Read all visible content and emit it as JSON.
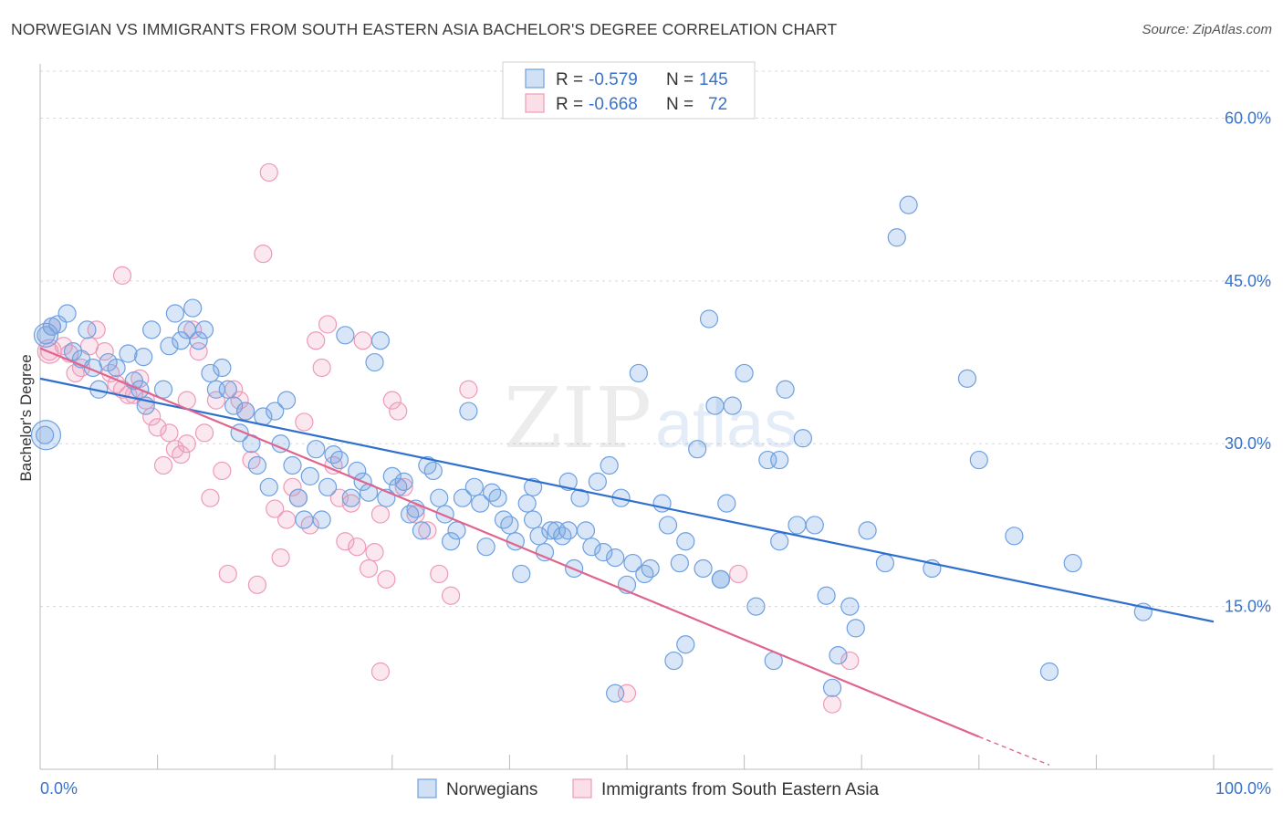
{
  "title": "NORWEGIAN VS IMMIGRANTS FROM SOUTH EASTERN ASIA BACHELOR'S DEGREE CORRELATION CHART",
  "source": "Source: ZipAtlas.com",
  "watermark": {
    "zip": "ZIP",
    "atlas": "atlas"
  },
  "colors": {
    "blue": "#6ea0e0",
    "blue_fill": "rgba(120,165,225,0.28)",
    "blue_line": "#2f6fce",
    "pink": "#ee9ab6",
    "pink_fill": "rgba(240,160,190,0.25)",
    "pink_line": "#e0658e",
    "tick_text": "#3a73c9",
    "grid": "#d8d8d8"
  },
  "legend": {
    "rows": [
      {
        "r_label": "R = ",
        "r_value": "-0.579",
        "n_label": "N = ",
        "n_value": "145"
      },
      {
        "r_label": "R = ",
        "r_value": "-0.668",
        "n_label": "N = ",
        "n_value": "72"
      }
    ]
  },
  "chart_data": {
    "type": "scatter",
    "title": "NORWEGIAN VS IMMIGRANTS FROM SOUTH EASTERN ASIA BACHELOR'S DEGREE CORRELATION CHART",
    "xlabel": "",
    "ylabel": "Bachelor's Degree",
    "xlim": [
      0,
      100
    ],
    "ylim": [
      0,
      65
    ],
    "x_tick_labels": [
      "0.0%",
      "100.0%"
    ],
    "y_ticks": [
      15,
      30,
      45,
      60
    ],
    "y_tick_labels": [
      "15.0%",
      "30.0%",
      "45.0%",
      "60.0%"
    ],
    "grid": true,
    "legend_position": "top-center",
    "series": [
      {
        "name": "Norwegians",
        "color": "blue",
        "r": -0.579,
        "n": 145,
        "trend": {
          "x0": 0,
          "y0": 36.0,
          "x1": 100,
          "y1": 13.6
        },
        "points": [
          [
            0.5,
            40.0
          ],
          [
            0.4,
            30.8
          ],
          [
            1.5,
            41.0
          ],
          [
            2.3,
            42.0
          ],
          [
            1.0,
            40.8
          ],
          [
            2.8,
            38.5
          ],
          [
            3.5,
            37.8
          ],
          [
            4.0,
            40.5
          ],
          [
            4.5,
            37.0
          ],
          [
            5.0,
            35.0
          ],
          [
            5.8,
            37.5
          ],
          [
            6.5,
            37.0
          ],
          [
            7.5,
            38.3
          ],
          [
            8.0,
            35.8
          ],
          [
            8.5,
            35.0
          ],
          [
            9.0,
            33.5
          ],
          [
            8.8,
            38.0
          ],
          [
            9.5,
            40.5
          ],
          [
            10.5,
            35.0
          ],
          [
            11.0,
            39.0
          ],
          [
            11.5,
            42.0
          ],
          [
            12.0,
            39.5
          ],
          [
            12.5,
            40.5
          ],
          [
            13.0,
            42.5
          ],
          [
            13.5,
            39.5
          ],
          [
            14.0,
            40.5
          ],
          [
            14.5,
            36.5
          ],
          [
            15.0,
            35.0
          ],
          [
            15.5,
            37.0
          ],
          [
            16.0,
            35.0
          ],
          [
            16.5,
            33.5
          ],
          [
            17.0,
            31.0
          ],
          [
            17.5,
            33.0
          ],
          [
            18.0,
            30.0
          ],
          [
            18.5,
            28.0
          ],
          [
            19.0,
            32.5
          ],
          [
            19.5,
            26.0
          ],
          [
            20.0,
            33.0
          ],
          [
            20.5,
            30.0
          ],
          [
            21.0,
            34.0
          ],
          [
            21.5,
            28.0
          ],
          [
            22.0,
            25.0
          ],
          [
            22.5,
            23.0
          ],
          [
            23.0,
            27.0
          ],
          [
            23.5,
            29.5
          ],
          [
            24.0,
            23.0
          ],
          [
            24.5,
            26.0
          ],
          [
            25.0,
            29.0
          ],
          [
            25.5,
            28.5
          ],
          [
            26.0,
            40.0
          ],
          [
            26.5,
            25.0
          ],
          [
            27.0,
            27.5
          ],
          [
            27.5,
            26.5
          ],
          [
            28.0,
            25.5
          ],
          [
            28.5,
            37.5
          ],
          [
            29.0,
            39.5
          ],
          [
            29.5,
            25.0
          ],
          [
            30.0,
            27.0
          ],
          [
            30.5,
            26.0
          ],
          [
            31.0,
            26.5
          ],
          [
            31.5,
            23.5
          ],
          [
            32.0,
            24.0
          ],
          [
            32.5,
            22.0
          ],
          [
            33.0,
            28.0
          ],
          [
            33.5,
            27.5
          ],
          [
            34.0,
            25.0
          ],
          [
            34.5,
            23.5
          ],
          [
            35.0,
            21.0
          ],
          [
            35.5,
            22.0
          ],
          [
            36.0,
            25.0
          ],
          [
            36.5,
            33.0
          ],
          [
            37.0,
            26.0
          ],
          [
            37.5,
            24.5
          ],
          [
            38.0,
            20.5
          ],
          [
            38.5,
            25.5
          ],
          [
            39.0,
            25.0
          ],
          [
            39.5,
            23.0
          ],
          [
            40.0,
            22.5
          ],
          [
            40.5,
            21.0
          ],
          [
            41.0,
            18.0
          ],
          [
            41.5,
            24.5
          ],
          [
            42.0,
            26.0
          ],
          [
            42.5,
            21.5
          ],
          [
            43.0,
            20.0
          ],
          [
            43.5,
            22.0
          ],
          [
            44.0,
            22.0
          ],
          [
            44.5,
            21.5
          ],
          [
            45.0,
            22.0
          ],
          [
            45.5,
            18.5
          ],
          [
            46.0,
            25.0
          ],
          [
            46.5,
            22.0
          ],
          [
            47.0,
            20.5
          ],
          [
            47.5,
            26.5
          ],
          [
            48.0,
            20.0
          ],
          [
            48.5,
            28.0
          ],
          [
            49.0,
            19.5
          ],
          [
            49.5,
            25.0
          ],
          [
            50.0,
            17.0
          ],
          [
            50.5,
            19.0
          ],
          [
            51.0,
            36.5
          ],
          [
            51.5,
            18.0
          ],
          [
            52.0,
            18.5
          ],
          [
            53.0,
            24.5
          ],
          [
            53.5,
            22.5
          ],
          [
            54.0,
            10.0
          ],
          [
            54.5,
            19.0
          ],
          [
            55.0,
            11.5
          ],
          [
            56.0,
            29.5
          ],
          [
            56.5,
            18.5
          ],
          [
            57.0,
            41.5
          ],
          [
            57.5,
            33.5
          ],
          [
            58.0,
            17.5
          ],
          [
            58.5,
            24.5
          ],
          [
            59.0,
            33.5
          ],
          [
            60.0,
            36.5
          ],
          [
            61.0,
            15.0
          ],
          [
            62.0,
            28.5
          ],
          [
            62.5,
            10.0
          ],
          [
            63.0,
            21.0
          ],
          [
            63.5,
            35.0
          ],
          [
            64.5,
            22.5
          ],
          [
            65.0,
            30.5
          ],
          [
            66.0,
            22.5
          ],
          [
            67.0,
            16.0
          ],
          [
            68.0,
            10.5
          ],
          [
            69.0,
            15.0
          ],
          [
            69.5,
            13.0
          ],
          [
            70.5,
            22.0
          ],
          [
            72.0,
            19.0
          ],
          [
            73.0,
            49.0
          ],
          [
            74.0,
            52.0
          ],
          [
            76.0,
            18.5
          ],
          [
            79.0,
            36.0
          ],
          [
            80.0,
            28.5
          ],
          [
            83.0,
            21.5
          ],
          [
            86.0,
            9.0
          ],
          [
            88.0,
            19.0
          ],
          [
            94.0,
            14.5
          ],
          [
            49.0,
            7.0
          ],
          [
            67.5,
            7.5
          ],
          [
            63.0,
            28.5
          ],
          [
            58.0,
            17.5
          ],
          [
            55.0,
            21.0
          ],
          [
            45.0,
            26.5
          ],
          [
            42.0,
            23.0
          ]
        ]
      },
      {
        "name": "Immigrants from South Eastern Asia",
        "color": "pink",
        "r": -0.668,
        "n": 72,
        "trend": {
          "x0": 0,
          "y0": 38.8,
          "x1": 80,
          "y1": 3.0,
          "dash_to_x": 86,
          "dash_to_y": 0.4
        },
        "points": [
          [
            0.8,
            38.5
          ],
          [
            1.0,
            40.8
          ],
          [
            2.0,
            39.0
          ],
          [
            2.5,
            38.3
          ],
          [
            3.0,
            36.5
          ],
          [
            3.5,
            37.0
          ],
          [
            4.2,
            39.0
          ],
          [
            4.8,
            40.5
          ],
          [
            5.5,
            38.5
          ],
          [
            6.0,
            36.5
          ],
          [
            6.5,
            35.5
          ],
          [
            7.0,
            35.0
          ],
          [
            7.5,
            34.5
          ],
          [
            8.0,
            34.5
          ],
          [
            8.5,
            36.0
          ],
          [
            9.0,
            34.0
          ],
          [
            9.5,
            32.5
          ],
          [
            10.0,
            31.5
          ],
          [
            10.5,
            28.0
          ],
          [
            11.0,
            31.0
          ],
          [
            11.5,
            29.5
          ],
          [
            12.0,
            29.0
          ],
          [
            12.5,
            34.0
          ],
          [
            13.0,
            40.5
          ],
          [
            13.5,
            38.5
          ],
          [
            14.0,
            31.0
          ],
          [
            14.5,
            25.0
          ],
          [
            15.0,
            34.0
          ],
          [
            15.5,
            27.5
          ],
          [
            16.0,
            18.0
          ],
          [
            16.5,
            35.0
          ],
          [
            17.0,
            34.0
          ],
          [
            17.5,
            33.0
          ],
          [
            18.0,
            28.5
          ],
          [
            18.5,
            17.0
          ],
          [
            19.0,
            47.5
          ],
          [
            19.5,
            55.0
          ],
          [
            20.0,
            24.0
          ],
          [
            20.5,
            19.5
          ],
          [
            21.0,
            23.0
          ],
          [
            21.5,
            26.0
          ],
          [
            22.0,
            25.0
          ],
          [
            22.5,
            32.0
          ],
          [
            23.0,
            22.5
          ],
          [
            23.5,
            39.5
          ],
          [
            24.0,
            37.0
          ],
          [
            24.5,
            41.0
          ],
          [
            25.0,
            28.0
          ],
          [
            25.5,
            25.0
          ],
          [
            26.0,
            21.0
          ],
          [
            26.5,
            24.5
          ],
          [
            27.0,
            20.5
          ],
          [
            27.5,
            39.5
          ],
          [
            28.0,
            18.5
          ],
          [
            28.5,
            20.0
          ],
          [
            29.0,
            23.5
          ],
          [
            29.5,
            17.5
          ],
          [
            30.0,
            34.0
          ],
          [
            30.5,
            33.0
          ],
          [
            31.0,
            26.0
          ],
          [
            32.0,
            23.5
          ],
          [
            33.0,
            22.0
          ],
          [
            34.0,
            18.0
          ],
          [
            35.0,
            16.0
          ],
          [
            36.5,
            35.0
          ],
          [
            7.0,
            45.5
          ],
          [
            12.5,
            30.0
          ],
          [
            29.0,
            9.0
          ],
          [
            50.0,
            7.0
          ],
          [
            59.5,
            18.0
          ],
          [
            69.0,
            10.0
          ],
          [
            67.5,
            6.0
          ]
        ]
      }
    ]
  }
}
